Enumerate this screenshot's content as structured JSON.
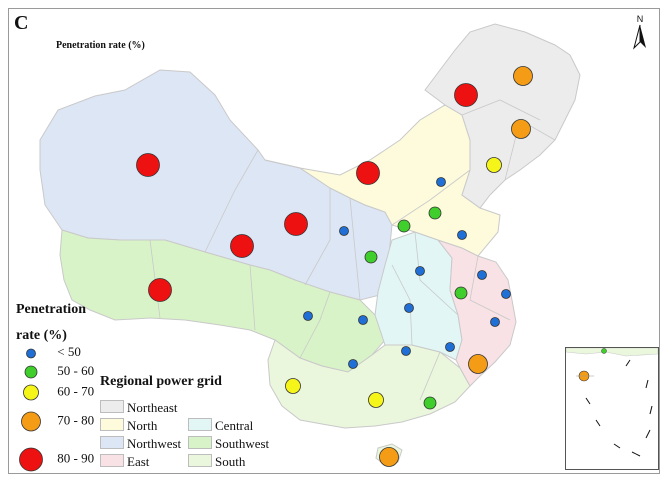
{
  "panel_letter": "C",
  "map_subtitle": "Penetration rate (%)",
  "north_label": "N",
  "colors": {
    "Northeast": "#ececec",
    "North": "#fdfbdc",
    "Northwest": "#dde6f5",
    "East": "#f8e2e5",
    "Central": "#e1f6f5",
    "Southwest": "#d9f3c8",
    "South": "#eaf7dd",
    "border": "#c9c9c9"
  },
  "legend": {
    "title_line1": "Penetration",
    "title_line2": "rate (%)",
    "classes": [
      {
        "label": "< 50",
        "color": "#1f6fd6",
        "size_rank": 1
      },
      {
        "label": "50 - 60",
        "color": "#3fce2c",
        "size_rank": 2
      },
      {
        "label": "60 - 70",
        "color": "#f5f51a",
        "size_rank": 3
      },
      {
        "label": "70 - 80",
        "color": "#f49c15",
        "size_rank": 4
      },
      {
        "label": "80 - 90",
        "color": "#ee1111",
        "size_rank": 5
      }
    ]
  },
  "grid_legend": {
    "title": "Regional power grid",
    "items": [
      {
        "label": "Northeast",
        "color_key": "Northeast"
      },
      {
        "label": "North",
        "color_key": "North"
      },
      {
        "label": "Northwest",
        "color_key": "Northwest"
      },
      {
        "label": "East",
        "color_key": "East"
      },
      {
        "label": "Central",
        "color_key": "Central"
      },
      {
        "label": "Southwest",
        "color_key": "Southwest"
      },
      {
        "label": "South",
        "color_key": "South"
      }
    ]
  }
}
